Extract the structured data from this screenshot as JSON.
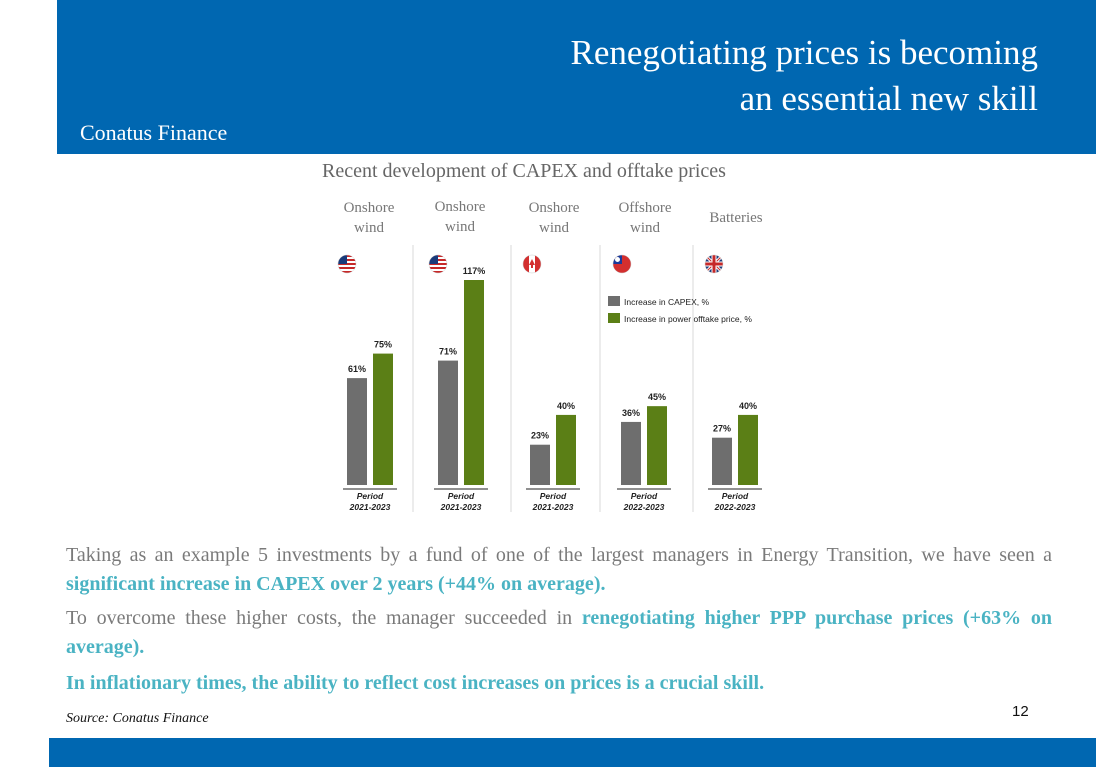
{
  "header": {
    "title_line1": "Renegotiating prices is becoming",
    "title_line2": "an essential new skill",
    "brand": "Conatus Finance"
  },
  "colors": {
    "brand_blue": "#0067b1",
    "capex_gray": "#6e6e6e",
    "offtake_green": "#5b7f16",
    "highlight_teal": "#4ab3c3"
  },
  "chart_data": {
    "type": "bar",
    "title": "Recent development of CAPEX and offtake prices",
    "groups": [
      {
        "header": "Onshore wind",
        "flag": "us-flag-icon",
        "period": "Period 2021-2023",
        "capex": 61,
        "offtake": 75
      },
      {
        "header": "Onshore wind",
        "flag": "us-flag-icon",
        "period": "Period 2021-2023",
        "capex": 71,
        "offtake": 117
      },
      {
        "header": "Onshore wind",
        "flag": "canada-flag-icon",
        "period": "Period 2021-2023",
        "capex": 23,
        "offtake": 40
      },
      {
        "header": "Offshore wind",
        "flag": "taiwan-flag-icon",
        "period": "Period 2022-2023",
        "capex": 36,
        "offtake": 45
      },
      {
        "header": "Batteries",
        "flag": "uk-flag-icon",
        "period": "Period 2022-2023",
        "capex": 27,
        "offtake": 40
      }
    ],
    "series": [
      {
        "name": "Increase in CAPEX, %",
        "color": "#6e6e6e"
      },
      {
        "name": "Increase in power offtake price, %",
        "color": "#5b7f16"
      }
    ],
    "legend_position": "top-right",
    "value_suffix": "%"
  },
  "text": {
    "p1_a": "Taking as an example 5 investments by a fund of one of the largest managers in Energy Transition, we have seen a ",
    "p1_b": "significant increase in CAPEX over 2 years (+44% on average).",
    "p2_a": "To overcome these higher costs, the manager succeeded in ",
    "p2_b": "renegotiating higher PPP purchase prices (+63% on average).",
    "p3": "In inflationary times, the ability to reflect cost increases on prices is a crucial skill."
  },
  "footer": {
    "source": "Source: Conatus Finance",
    "page_number": "12"
  }
}
